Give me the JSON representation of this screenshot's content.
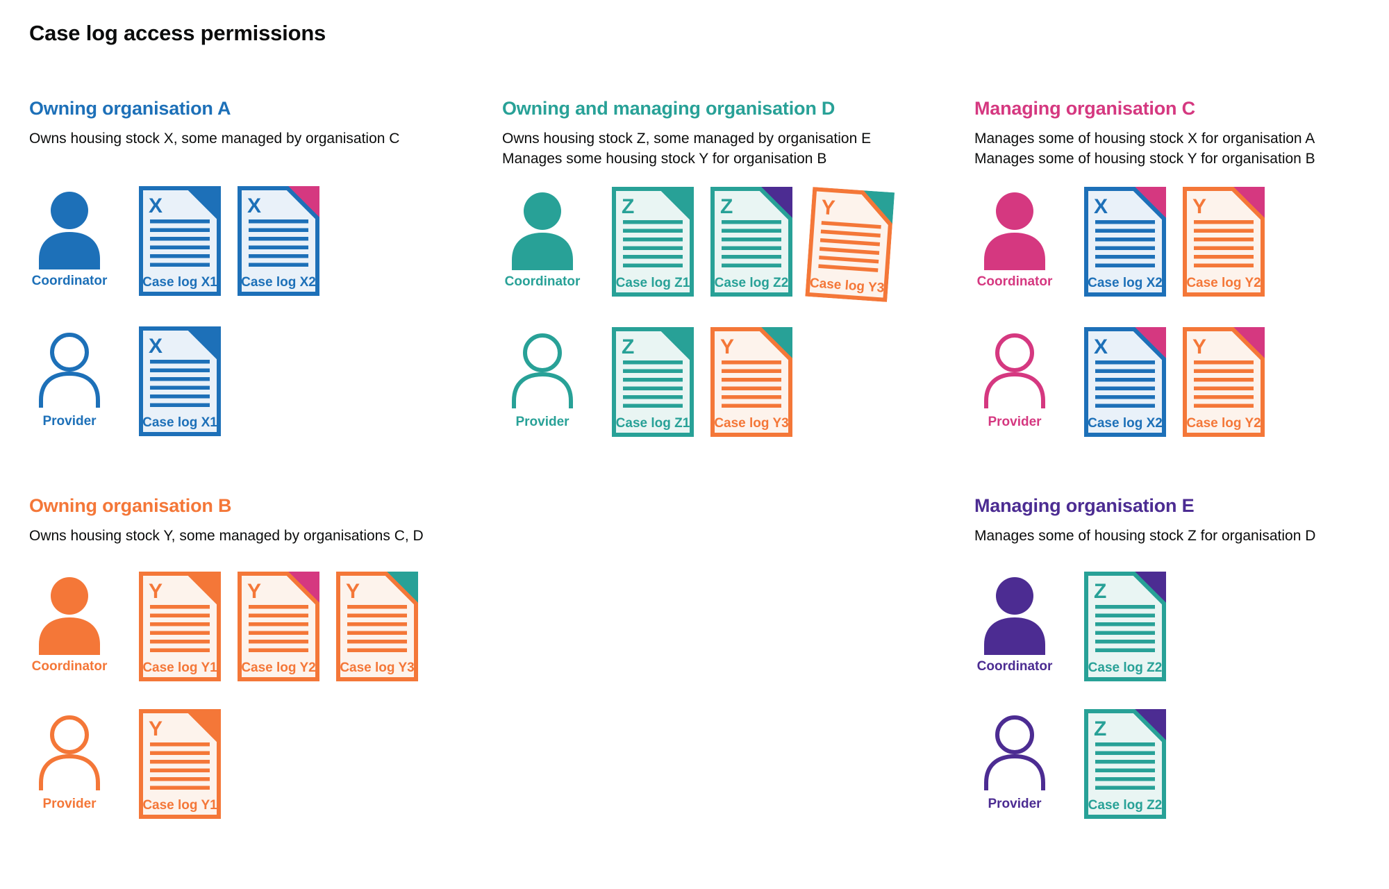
{
  "page": {
    "title": "Case log access permissions"
  },
  "colors": {
    "blue": "#1d70b8",
    "teal": "#28a197",
    "orange": "#f47738",
    "pink": "#d53880",
    "purple": "#4c2c92",
    "text": "#0b0c0c",
    "blue_tint": "#e9f1f9",
    "teal_tint": "#e9f5f3",
    "orange_tint": "#fdf3ec"
  },
  "sections": [
    {
      "id": "owning-organisation-a",
      "color": "blue",
      "title": "Owning organisation A",
      "description": [
        "Owns housing stock X, some managed by organisation C"
      ],
      "rows": [
        {
          "role": "Coordinator",
          "person": "filled",
          "docs": [
            {
              "letter": "X",
              "label": "Case log X1",
              "doc_color": "blue",
              "fold_color": "blue"
            },
            {
              "letter": "X",
              "label": "Case log X2",
              "doc_color": "blue",
              "fold_color": "pink"
            }
          ]
        },
        {
          "role": "Provider",
          "person": "outline",
          "docs": [
            {
              "letter": "X",
              "label": "Case log X1",
              "doc_color": "blue",
              "fold_color": "blue"
            }
          ]
        }
      ]
    },
    {
      "id": "owning-and-managing-organisation-d",
      "color": "teal",
      "title": "Owning and managing organisation D",
      "description": [
        "Owns housing stock Z, some managed by organisation E",
        "Manages some housing stock Y for organisation B"
      ],
      "rows": [
        {
          "role": "Coordinator",
          "person": "filled",
          "docs": [
            {
              "letter": "Z",
              "label": "Case log Z1",
              "doc_color": "teal",
              "fold_color": "teal"
            },
            {
              "letter": "Z",
              "label": "Case log Z2",
              "doc_color": "teal",
              "fold_color": "purple"
            },
            {
              "letter": "Y",
              "label": "Case log Y3",
              "doc_color": "orange",
              "fold_color": "teal",
              "tilted": true
            }
          ]
        },
        {
          "role": "Provider",
          "person": "outline",
          "docs": [
            {
              "letter": "Z",
              "label": "Case log Z1",
              "doc_color": "teal",
              "fold_color": "teal"
            },
            {
              "letter": "Y",
              "label": "Case log Y3",
              "doc_color": "orange",
              "fold_color": "teal"
            }
          ]
        }
      ]
    },
    {
      "id": "managing-organisation-c",
      "color": "pink",
      "title": "Managing organisation C",
      "description": [
        "Manages some of housing stock X for organisation A",
        "Manages some of housing stock Y for organisation B"
      ],
      "rows": [
        {
          "role": "Coordinator",
          "person": "filled",
          "docs": [
            {
              "letter": "X",
              "label": "Case log X2",
              "doc_color": "blue",
              "fold_color": "pink"
            },
            {
              "letter": "Y",
              "label": "Case log Y2",
              "doc_color": "orange",
              "fold_color": "pink"
            }
          ]
        },
        {
          "role": "Provider",
          "person": "outline",
          "docs": [
            {
              "letter": "X",
              "label": "Case log X2",
              "doc_color": "blue",
              "fold_color": "pink"
            },
            {
              "letter": "Y",
              "label": "Case log Y2",
              "doc_color": "orange",
              "fold_color": "pink"
            }
          ]
        }
      ]
    },
    {
      "id": "owning-organisation-b",
      "color": "orange",
      "title": "Owning organisation B",
      "description": [
        "Owns housing stock Y, some managed by organisations C, D"
      ],
      "rows": [
        {
          "role": "Coordinator",
          "person": "filled",
          "docs": [
            {
              "letter": "Y",
              "label": "Case log Y1",
              "doc_color": "orange",
              "fold_color": "orange"
            },
            {
              "letter": "Y",
              "label": "Case log Y2",
              "doc_color": "orange",
              "fold_color": "pink"
            },
            {
              "letter": "Y",
              "label": "Case log Y3",
              "doc_color": "orange",
              "fold_color": "teal"
            }
          ]
        },
        {
          "role": "Provider",
          "person": "outline",
          "docs": [
            {
              "letter": "Y",
              "label": "Case log Y1",
              "doc_color": "orange",
              "fold_color": "orange"
            }
          ]
        }
      ]
    },
    {
      "id": "managing-organisation-e",
      "color": "purple",
      "title": "Managing organisation E",
      "description": [
        "Manages some of housing stock Z for organisation D"
      ],
      "rows": [
        {
          "role": "Coordinator",
          "person": "filled",
          "docs": [
            {
              "letter": "Z",
              "label": "Case log Z2",
              "doc_color": "teal",
              "fold_color": "purple"
            }
          ]
        },
        {
          "role": "Provider",
          "person": "outline",
          "docs": [
            {
              "letter": "Z",
              "label": "Case log Z2",
              "doc_color": "teal",
              "fold_color": "purple"
            }
          ]
        }
      ]
    }
  ]
}
